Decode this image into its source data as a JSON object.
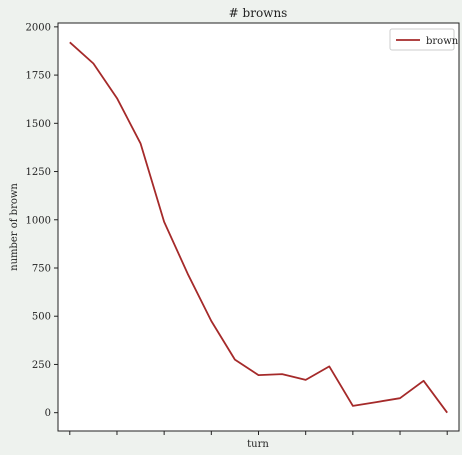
{
  "chart_data": {
    "type": "line",
    "title": "# browns",
    "xlabel": "turn",
    "ylabel": "number of brown",
    "x": [
      1,
      2,
      3,
      4,
      5,
      6,
      7,
      8,
      9,
      10,
      11,
      12,
      13,
      14,
      15,
      16,
      17
    ],
    "series": [
      {
        "name": "brown",
        "color": "#a52a2a",
        "values": [
          1920,
          1810,
          1630,
          1395,
          990,
          720,
          475,
          275,
          195,
          200,
          170,
          240,
          35,
          55,
          75,
          165,
          0
        ]
      }
    ],
    "ylim": [
      -95,
      2020
    ],
    "yticks": [
      0,
      250,
      500,
      750,
      1000,
      1250,
      1500,
      1750,
      2000
    ],
    "xticks_labeled": false,
    "legend": "top-right",
    "grid": false
  }
}
